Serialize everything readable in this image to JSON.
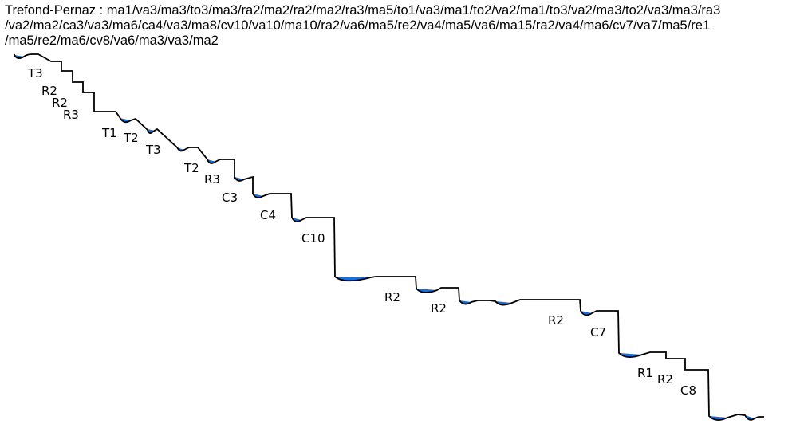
{
  "title": {
    "lines": [
      "Trefond-Pernaz : ma1/va3/ma3/to3/ma3/ra2/ma2/ra2/ma2/ra3/ma5/to1/va3/ma1/to2/va2/ma1/to3/va2/ma3/to2/va3/ma3/ra3",
      "/va2/ma2/ca3/va3/ma6/ca4/va3/ma8/cv10/va10/ma10/ra2/va6/ma5/re2/va4/ma5/va6/ma15/ra2/va4/ma6/cv7/va7/ma5/re1",
      "/ma5/re2/ma6/cv8/va6/ma3/va3/ma2"
    ]
  },
  "colors": {
    "line": "#000000",
    "water": "#1a6fd6"
  },
  "labels": [
    "T3",
    "R2",
    "R2",
    "R3",
    "T1",
    "T2",
    "T3",
    "T2",
    "R3",
    "C3",
    "C4",
    "C10",
    "R2",
    "R2",
    "R2",
    "C7",
    "R1",
    "R2",
    "C8"
  ]
}
